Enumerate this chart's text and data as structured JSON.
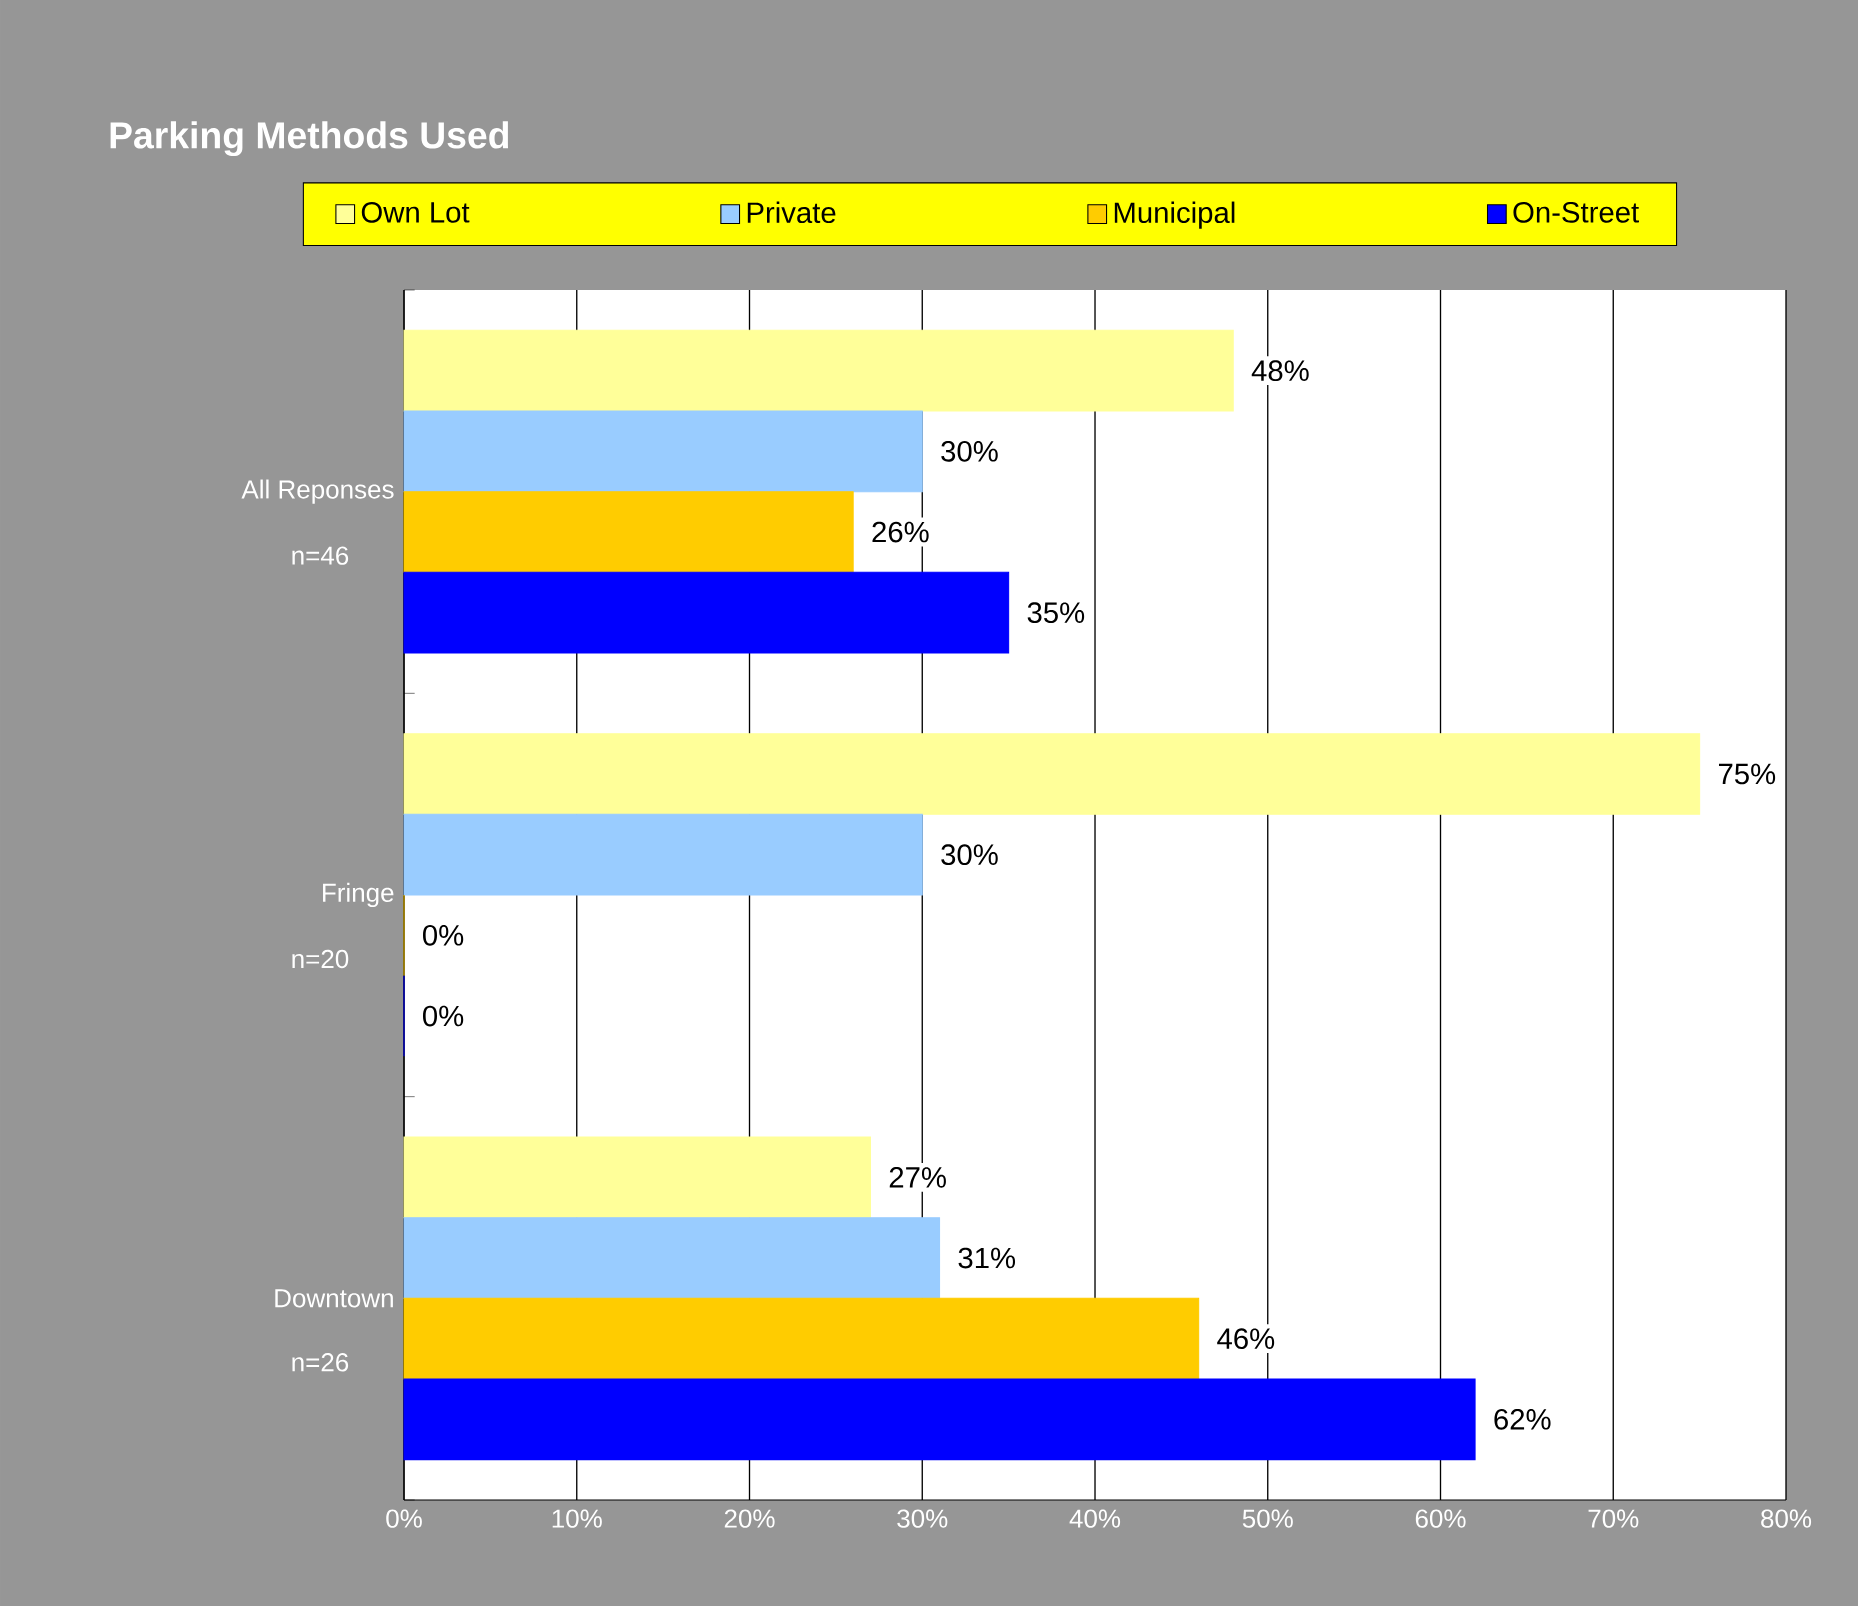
{
  "chart_data": {
    "type": "bar",
    "orientation": "horizontal",
    "title": "Parking Methods Used",
    "categories": [
      "All Reponses",
      "Fringe",
      "Downtown"
    ],
    "annotations": [
      "n=46",
      "n=20",
      "n=26"
    ],
    "series": [
      {
        "name": "Own Lot",
        "color": "#ffff99",
        "values": [
          48,
          75,
          27
        ],
        "value_labels": [
          "48%",
          "75%",
          "27%"
        ]
      },
      {
        "name": "Private",
        "color": "#99ccff",
        "values": [
          30,
          30,
          31
        ],
        "value_labels": [
          "30%",
          "30%",
          "31%"
        ]
      },
      {
        "name": "Municipal",
        "color": "#ffcc00",
        "values": [
          26,
          0,
          46
        ],
        "value_labels": [
          "26%",
          "0%",
          "46%"
        ]
      },
      {
        "name": "On-Street",
        "color": "#0000ff",
        "values": [
          35,
          0,
          62
        ],
        "value_labels": [
          "35%",
          "0%",
          "62%"
        ]
      }
    ],
    "xlim": [
      0,
      80
    ],
    "xticks": [
      {
        "value": 0,
        "label": "0%"
      },
      {
        "value": 10,
        "label": "10%"
      },
      {
        "value": 20,
        "label": "20%"
      },
      {
        "value": 30,
        "label": "30%"
      },
      {
        "value": 40,
        "label": "40%"
      },
      {
        "value": 50,
        "label": "50%"
      },
      {
        "value": 60,
        "label": "60%"
      },
      {
        "value": 70,
        "label": "70%"
      },
      {
        "value": 80,
        "label": "80%"
      }
    ],
    "grid": "x",
    "legend": "top"
  }
}
